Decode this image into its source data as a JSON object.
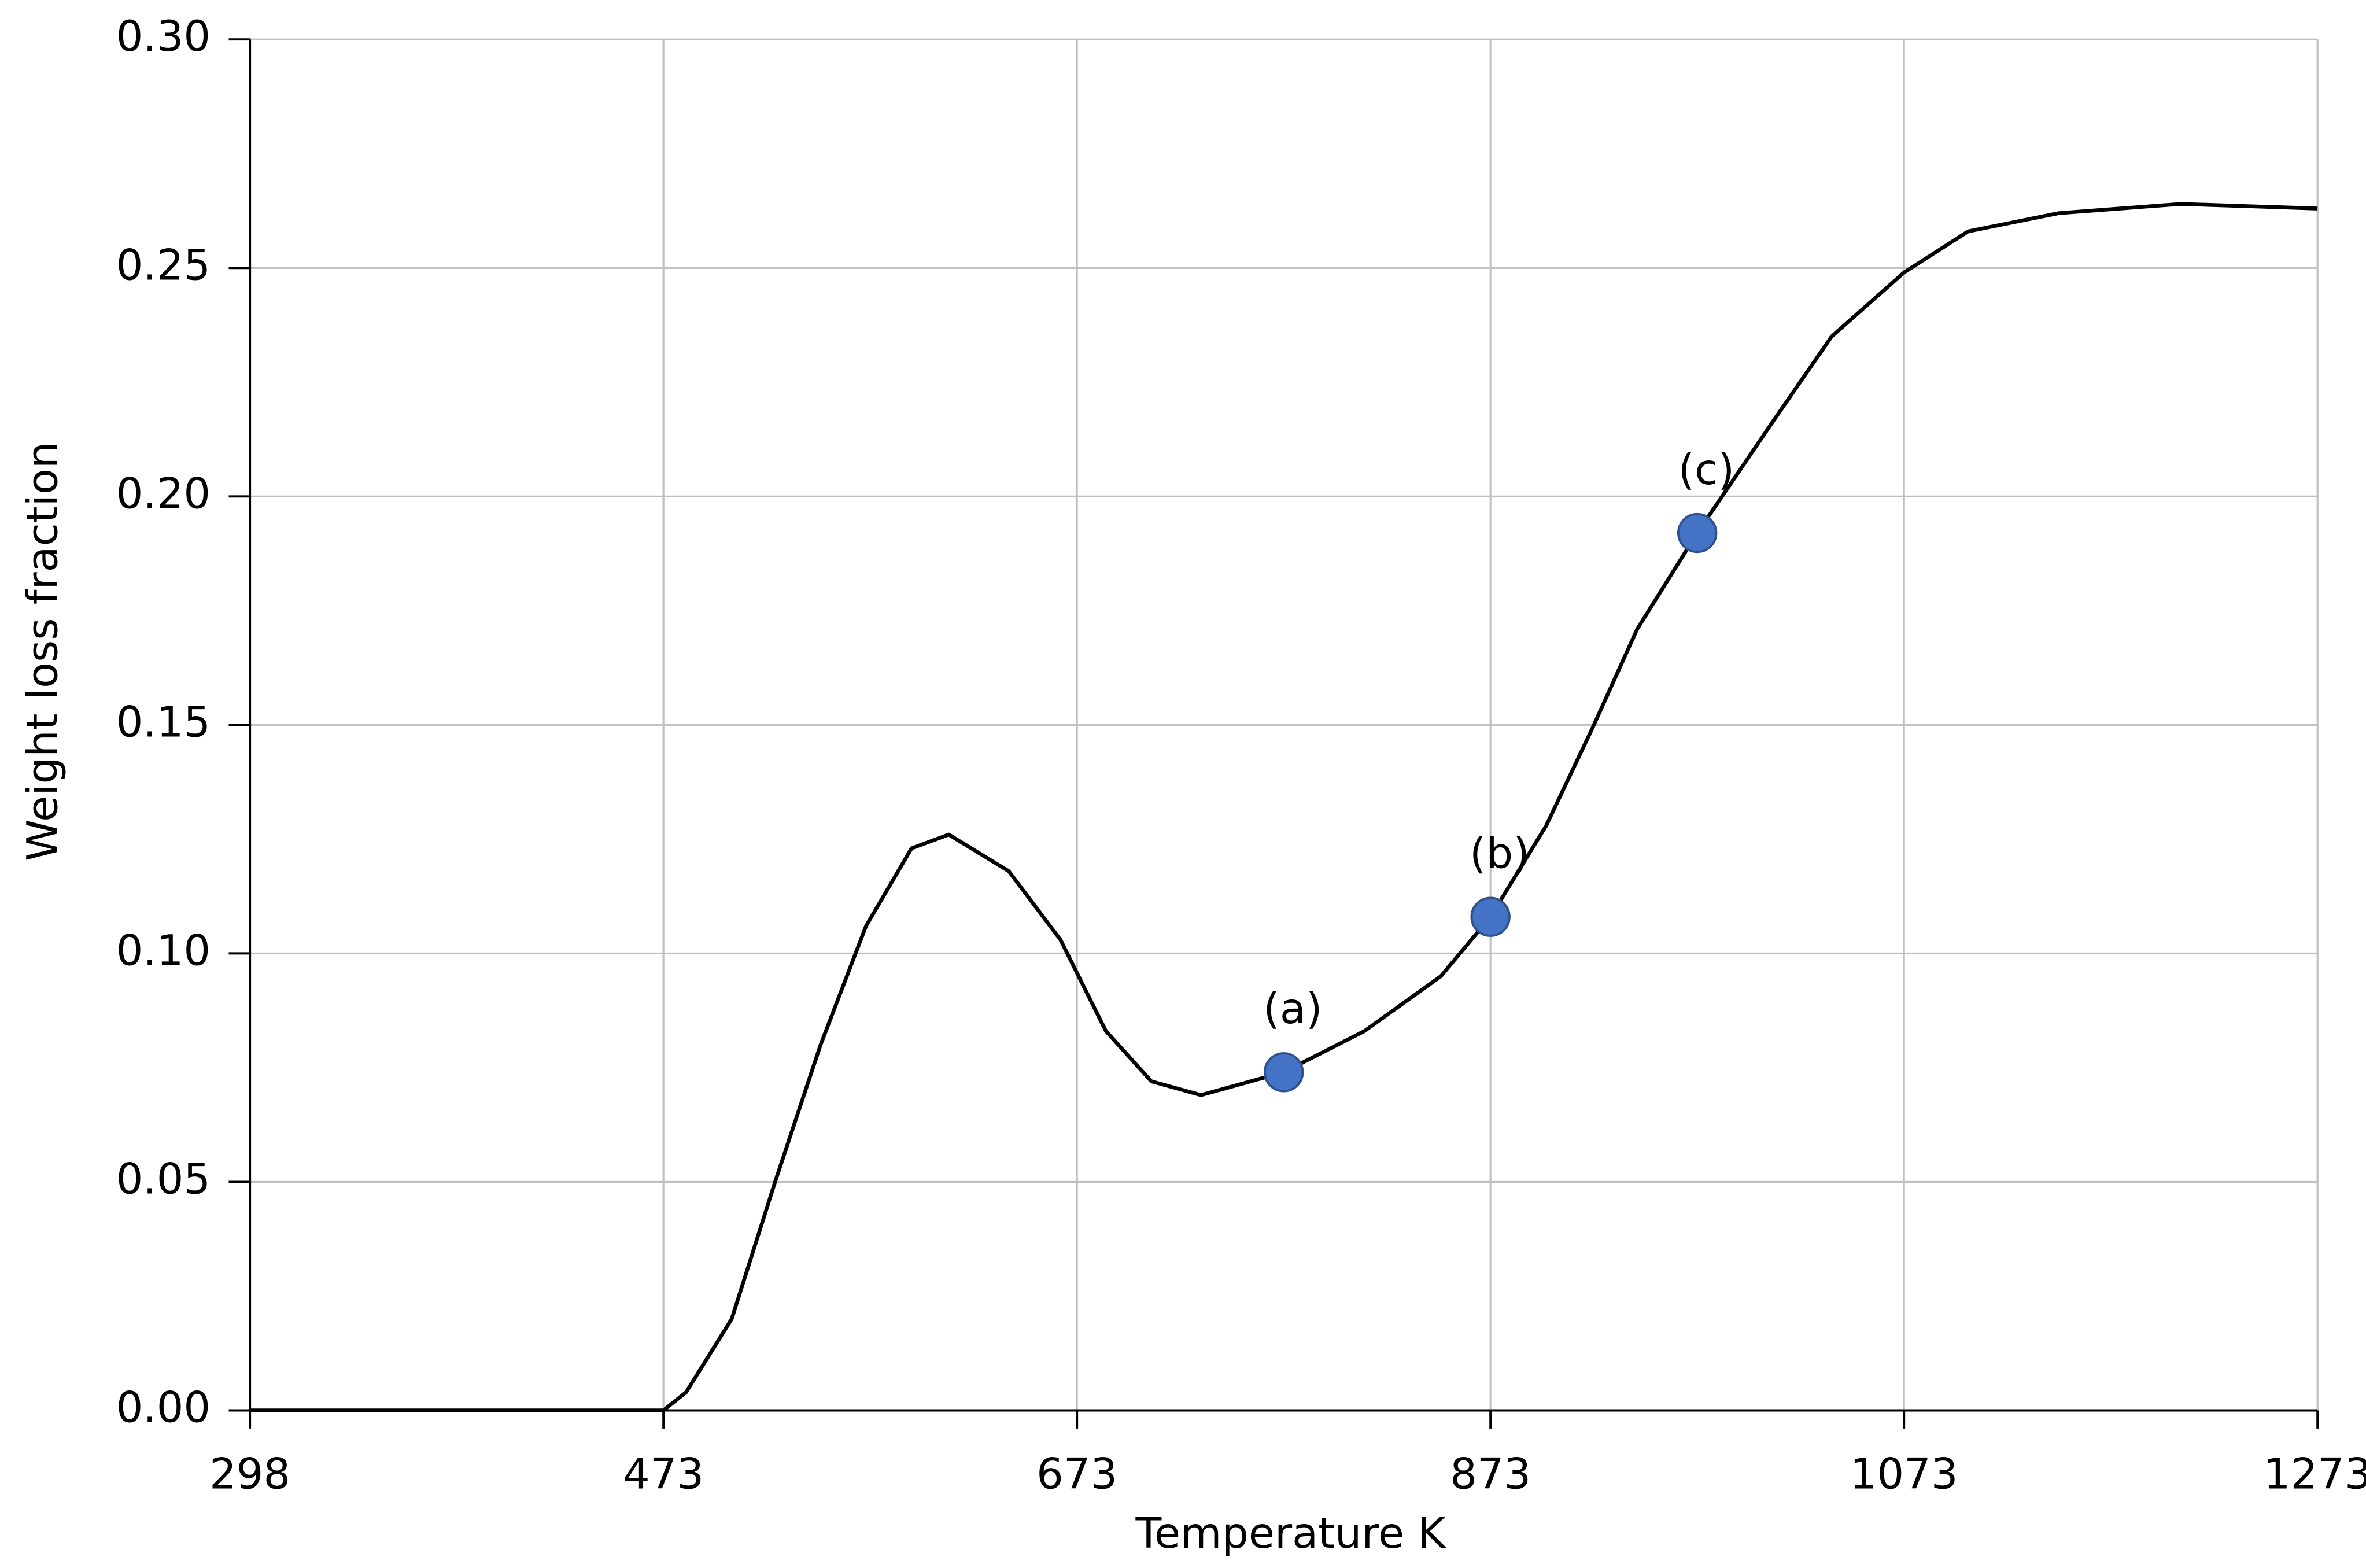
{
  "chart_data": {
    "type": "line",
    "x_label": "Temperature K",
    "y_label": "Weight loss fraction",
    "x": [
      298,
      470,
      473,
      484,
      506,
      527,
      549,
      571,
      593,
      611,
      640,
      665,
      687,
      709,
      733,
      773,
      812,
      849,
      873,
      900,
      922,
      944,
      973,
      1009,
      1038,
      1073,
      1104,
      1148,
      1207,
      1273
    ],
    "series": [
      {
        "color": "#000000",
        "values": [
          0,
          0,
          0.0,
          0.004,
          0.02,
          0.05,
          0.08,
          0.106,
          0.123,
          0.126,
          0.118,
          0.103,
          0.083,
          0.072,
          0.069,
          0.074,
          0.083,
          0.095,
          0.108,
          0.128,
          0.149,
          0.171,
          0.192,
          0.216,
          0.235,
          0.249,
          0.258,
          0.262,
          0.264,
          0.263
        ]
      }
    ],
    "points": {
      "color": "#4472c4",
      "labels": [
        "(a)",
        "(b)",
        "(c)"
      ],
      "x": [
        773,
        873,
        973
      ],
      "values": [
        0.074,
        0.108,
        0.192
      ]
    },
    "xlim": [
      298,
      1273
    ],
    "xticks": [
      298,
      473,
      673,
      873,
      1073,
      1273
    ],
    "ylim": [
      0,
      0.3
    ],
    "yticks": [
      {
        "value": 0,
        "label": "0.00"
      },
      0.05,
      {
        "value": 0.1,
        "label": "0.10"
      },
      0.15,
      {
        "value": 0.2,
        "label": "0.20"
      },
      0.25,
      {
        "value": 0.3,
        "label": "0.30"
      }
    ],
    "grid": true
  }
}
